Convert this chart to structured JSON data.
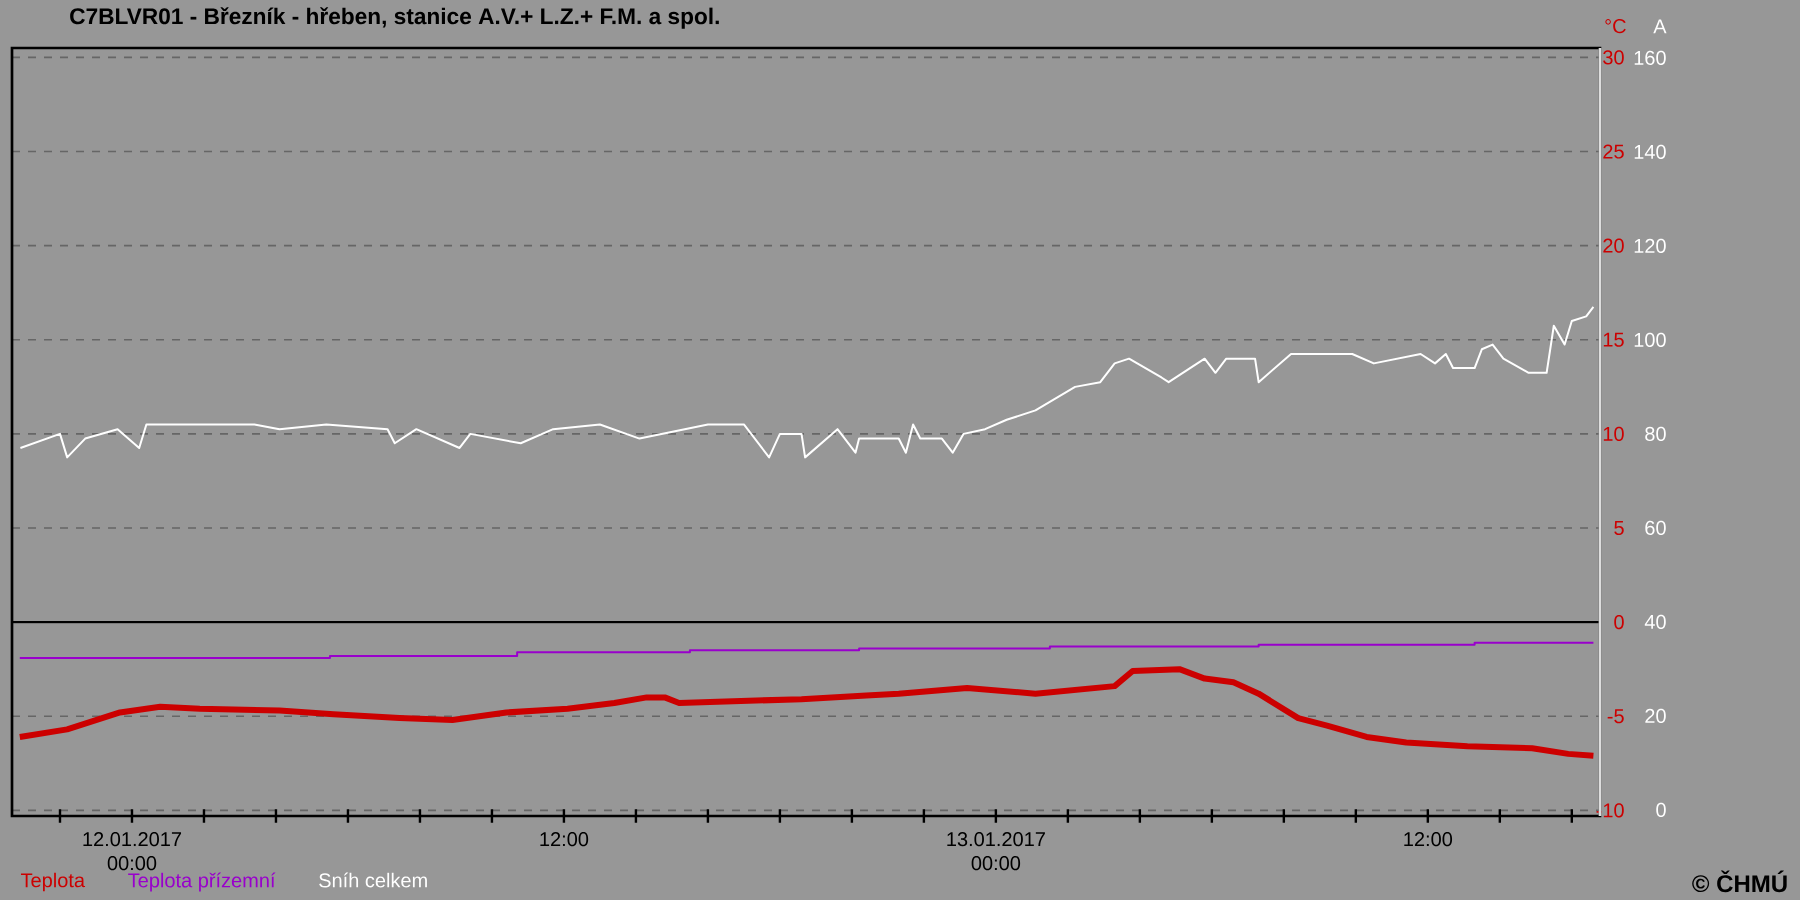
{
  "chart_data": {
    "type": "line",
    "title": "C7BLVR01 - Březník - hřeben, stanice A.V.+ L.Z.+ F.M. a spol.",
    "ylabel": "°C",
    "y2label": "A",
    "xlim": [
      "2017-01-11T20:40",
      "2017-01-13T16:47"
    ],
    "xticks": [
      {
        "value": "2017-01-11T22:00",
        "label": null
      },
      {
        "value": "2017-01-12T00:00",
        "label": "12.01.2017 00:00"
      },
      {
        "value": "2017-01-12T02:00",
        "label": null
      },
      {
        "value": "2017-01-12T04:00",
        "label": null
      },
      {
        "value": "2017-01-12T06:00",
        "label": null
      },
      {
        "value": "2017-01-12T08:00",
        "label": null
      },
      {
        "value": "2017-01-12T10:00",
        "label": null
      },
      {
        "value": "2017-01-12T12:00",
        "label": "12:00"
      },
      {
        "value": "2017-01-12T14:00",
        "label": null
      },
      {
        "value": "2017-01-12T16:00",
        "label": null
      },
      {
        "value": "2017-01-12T18:00",
        "label": null
      },
      {
        "value": "2017-01-12T20:00",
        "label": null
      },
      {
        "value": "2017-01-12T22:00",
        "label": null
      },
      {
        "value": "2017-01-13T00:00",
        "label": "13.01.2017 00:00"
      },
      {
        "value": "2017-01-13T02:00",
        "label": null
      },
      {
        "value": "2017-01-13T04:00",
        "label": null
      },
      {
        "value": "2017-01-13T06:00",
        "label": null
      },
      {
        "value": "2017-01-13T08:00",
        "label": null
      },
      {
        "value": "2017-01-13T10:00",
        "label": null
      },
      {
        "value": "2017-01-13T12:00",
        "label": "12:00"
      },
      {
        "value": "2017-01-13T14:00",
        "label": null
      },
      {
        "value": "2017-01-13T16:00",
        "label": null
      }
    ],
    "ylim": [
      -10.3,
      30.5
    ],
    "yticks": [
      -10,
      -5,
      0,
      5,
      10,
      15,
      20,
      25,
      30
    ],
    "y2lim": [
      -1.3,
      162.1
    ],
    "y2ticks": [
      0,
      20,
      40,
      60,
      80,
      100,
      120,
      140,
      160
    ],
    "grid": "y",
    "legend": "bottom left",
    "ref_lines": [
      {
        "axis": "y",
        "value": 0,
        "color": "#000000"
      }
    ],
    "annotations": [
      "© ČHMÚ"
    ],
    "series": [
      {
        "name": "Teplota",
        "color": "#cc0000",
        "x": [
          "2017-01-11T20:53",
          "2017-01-11T22:12",
          "2017-01-11T23:40",
          "2017-01-12T00:47",
          "2017-01-12T01:53",
          "2017-01-12T04:06",
          "2017-01-12T05:36",
          "2017-01-12T07:26",
          "2017-01-12T08:54",
          "2017-01-12T10:24",
          "2017-01-12T12:06",
          "2017-01-12T13:24",
          "2017-01-12T14:18",
          "2017-01-12T14:48",
          "2017-01-12T15:12",
          "2017-01-12T16:42",
          "2017-01-12T18:36",
          "2017-01-12T20:24",
          "2017-01-12T21:18",
          "2017-01-12T23:12",
          "2017-01-13T01:06",
          "2017-01-13T03:18",
          "2017-01-13T03:48",
          "2017-01-13T05:06",
          "2017-01-13T05:48",
          "2017-01-13T06:36",
          "2017-01-13T07:18",
          "2017-01-13T08:24",
          "2017-01-13T09:12",
          "2017-01-13T10:18",
          "2017-01-13T11:24",
          "2017-01-13T13:06",
          "2017-01-13T14:54",
          "2017-01-13T15:54",
          "2017-01-13T16:36"
        ],
        "values": [
          -6.1,
          -5.7,
          -4.8,
          -4.5,
          -4.6,
          -4.7,
          -4.9,
          -5.1,
          -5.2,
          -4.8,
          -4.6,
          -4.3,
          -4.0,
          -4.0,
          -4.3,
          -4.2,
          -4.1,
          -3.9,
          -3.8,
          -3.5,
          -3.8,
          -3.4,
          -2.6,
          -2.5,
          -3.0,
          -3.2,
          -3.8,
          -5.1,
          -5.5,
          -6.1,
          -6.4,
          -6.6,
          -6.7,
          -7.0,
          -7.1
        ]
      },
      {
        "name": "Teplota přízemní",
        "color": "#9900cc",
        "x": [
          "2017-01-11T20:53",
          "2017-01-12T05:30",
          "2017-01-12T05:30",
          "2017-01-12T10:42",
          "2017-01-12T10:42",
          "2017-01-12T15:30",
          "2017-01-12T15:30",
          "2017-01-12T20:12",
          "2017-01-12T20:12",
          "2017-01-13T01:30",
          "2017-01-13T01:30",
          "2017-01-13T07:18",
          "2017-01-13T07:18",
          "2017-01-13T13:18",
          "2017-01-13T13:18",
          "2017-01-13T16:36"
        ],
        "values": [
          -1.9,
          -1.9,
          -1.8,
          -1.8,
          -1.6,
          -1.6,
          -1.5,
          -1.5,
          -1.4,
          -1.4,
          -1.3,
          -1.3,
          -1.2,
          -1.2,
          -1.1,
          -1.1
        ]
      },
      {
        "name": "Sníh celkem",
        "color": "#ffffff",
        "axis": "y2",
        "x": [
          "2017-01-11T20:54",
          "2017-01-11T22:00",
          "2017-01-11T22:12",
          "2017-01-11T22:42",
          "2017-01-11T23:36",
          "2017-01-12T00:12",
          "2017-01-12T00:24",
          "2017-01-12T02:24",
          "2017-01-12T03:24",
          "2017-01-12T04:06",
          "2017-01-12T05:24",
          "2017-01-12T07:06",
          "2017-01-12T07:18",
          "2017-01-12T07:54",
          "2017-01-12T09:06",
          "2017-01-12T09:24",
          "2017-01-12T10:48",
          "2017-01-12T11:42",
          "2017-01-12T13:00",
          "2017-01-12T14:06",
          "2017-01-12T16:00",
          "2017-01-12T17:00",
          "2017-01-12T17:42",
          "2017-01-12T18:00",
          "2017-01-12T18:36",
          "2017-01-12T18:42",
          "2017-01-12T19:36",
          "2017-01-12T20:06",
          "2017-01-12T20:12",
          "2017-01-12T21:18",
          "2017-01-12T21:30",
          "2017-01-12T21:42",
          "2017-01-12T21:54",
          "2017-01-12T22:30",
          "2017-01-12T22:48",
          "2017-01-12T23:06",
          "2017-01-12T23:42",
          "2017-01-13T00:18",
          "2017-01-13T01:06",
          "2017-01-13T02:12",
          "2017-01-13T02:54",
          "2017-01-13T03:18",
          "2017-01-13T03:42",
          "2017-01-13T04:36",
          "2017-01-13T04:48",
          "2017-01-13T05:48",
          "2017-01-13T06:06",
          "2017-01-13T06:24",
          "2017-01-13T07:12",
          "2017-01-13T07:18",
          "2017-01-13T08:12",
          "2017-01-13T09:54",
          "2017-01-13T10:30",
          "2017-01-13T11:48",
          "2017-01-13T12:12",
          "2017-01-13T12:30",
          "2017-01-13T12:42",
          "2017-01-13T13:18",
          "2017-01-13T13:30",
          "2017-01-13T13:48",
          "2017-01-13T14:06",
          "2017-01-13T14:48",
          "2017-01-13T15:18",
          "2017-01-13T15:30",
          "2017-01-13T15:48",
          "2017-01-13T16:00",
          "2017-01-13T16:24",
          "2017-01-13T16:36"
        ],
        "values": [
          77,
          80,
          75,
          79,
          81,
          77,
          82,
          82,
          82,
          81,
          82,
          81,
          78,
          81,
          77,
          80,
          78,
          81,
          82,
          79,
          82,
          82,
          75,
          80,
          80,
          75,
          81,
          76,
          79,
          79,
          76,
          82,
          79,
          79,
          76,
          80,
          81,
          83,
          85,
          90,
          91,
          95,
          96,
          92,
          91,
          96,
          93,
          96,
          96,
          91,
          97,
          97,
          95,
          97,
          95,
          97,
          94,
          94,
          98,
          99,
          96,
          93,
          93,
          103,
          99,
          104,
          105,
          107
        ]
      }
    ]
  }
}
